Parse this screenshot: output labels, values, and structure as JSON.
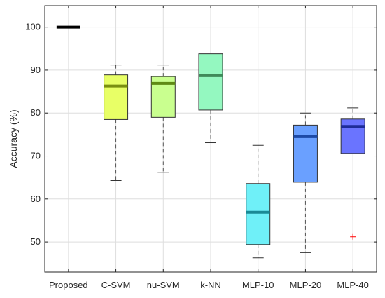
{
  "chart_data": {
    "type": "boxplot",
    "title": "",
    "xlabel": "",
    "ylabel": "Accuracy (%)",
    "ylim": [
      43,
      105
    ],
    "yticks": [
      50,
      60,
      70,
      80,
      90,
      100
    ],
    "grid": true,
    "categories": [
      "Proposed",
      "C-SVM",
      "nu-SVM",
      "k-NN",
      "MLP-10",
      "MLP-20",
      "MLP-40"
    ],
    "boxes": [
      {
        "label": "Proposed",
        "min": 100,
        "q1": 100,
        "median": 100,
        "q3": 100,
        "max": 100,
        "outliers": [],
        "fill": "#000000",
        "median_color": "#000000"
      },
      {
        "label": "C-SVM",
        "min": 64.3,
        "q1": 78.5,
        "median": 86.3,
        "q3": 88.9,
        "max": 91.2,
        "outliers": [],
        "fill": "#e8ff66",
        "median_color": "#7a8f10"
      },
      {
        "label": "nu-SVM",
        "min": 66.2,
        "q1": 79.0,
        "median": 86.9,
        "q3": 88.5,
        "max": 91.2,
        "outliers": [],
        "fill": "#c9ff8f",
        "median_color": "#5e8a14"
      },
      {
        "label": "k-NN",
        "min": 73.1,
        "q1": 80.7,
        "median": 88.7,
        "q3": 93.8,
        "max": 93.8,
        "outliers": [],
        "fill": "#94f8c0",
        "median_color": "#3f8a5a"
      },
      {
        "label": "MLP-10",
        "min": 46.3,
        "q1": 49.4,
        "median": 56.9,
        "q3": 63.6,
        "max": 72.5,
        "outliers": [],
        "fill": "#6ff0f8",
        "median_color": "#1a8a96"
      },
      {
        "label": "MLP-20",
        "min": 47.5,
        "q1": 63.9,
        "median": 74.5,
        "q3": 77.2,
        "max": 80.0,
        "outliers": [],
        "fill": "#6aa0ff",
        "median_color": "#1d4aa6"
      },
      {
        "label": "MLP-40",
        "min": 70.6,
        "q1": 70.6,
        "median": 76.9,
        "q3": 78.6,
        "max": 81.2,
        "outliers": [
          51.2
        ],
        "fill": "#6a74ff",
        "median_color": "#1e2c99"
      }
    ],
    "outlier_color": "#ff0000"
  }
}
